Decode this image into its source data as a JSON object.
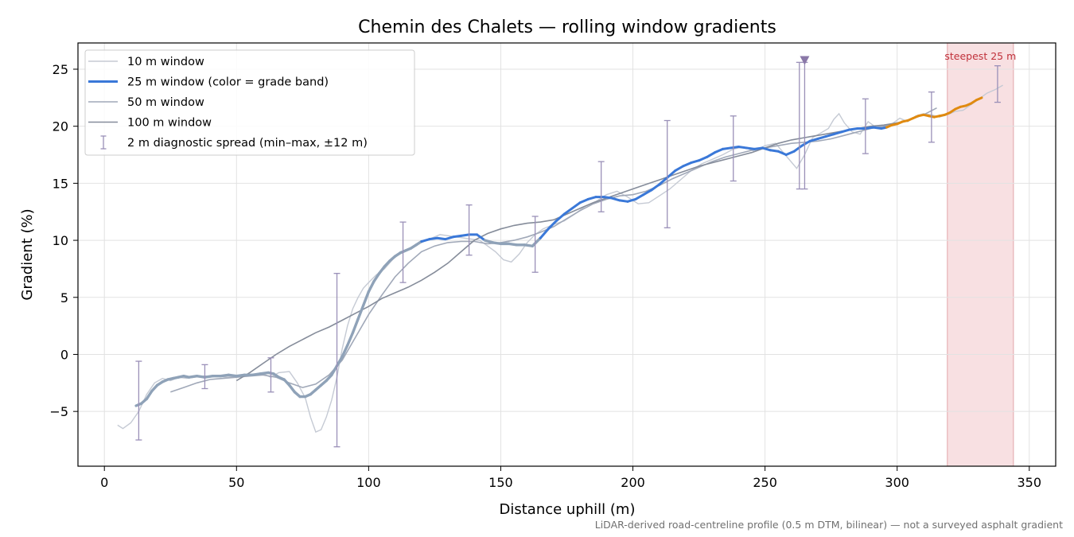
{
  "chart_data": {
    "type": "line",
    "title": "Chemin des Chalets — rolling window gradients",
    "xlabel": "Distance uphill (m)",
    "ylabel": "Gradient (%)",
    "xlim": [
      -10,
      360
    ],
    "ylim": [
      -9.8,
      27.3
    ],
    "xticks": [
      0,
      50,
      100,
      150,
      200,
      250,
      300,
      350
    ],
    "yticks": [
      -5,
      0,
      5,
      10,
      15,
      20,
      25
    ],
    "grid": true,
    "legend_position": "top-left",
    "footnote": "LiDAR-derived road-centreline profile (0.5 m DTM, bilinear) — not a surveyed asphalt gradient",
    "highlight_region": {
      "x0": 319,
      "x1": 344,
      "label": "steepest 25 m",
      "color": "#f5d5d8"
    },
    "peak_marker": {
      "x": 265,
      "y": 25.8,
      "color": "#8a78a8"
    },
    "grade_band_colors": {
      "low": "#8fa2b8",
      "mid": "#3a78d8",
      "high": "#e08a10"
    },
    "series": [
      {
        "name": "10 m window",
        "color": "#c5cad4",
        "x": [
          5,
          7,
          10,
          13,
          16,
          19,
          22,
          25,
          28,
          31,
          34,
          37,
          40,
          43,
          46,
          50,
          55,
          60,
          63,
          66,
          70,
          73,
          76,
          78,
          80,
          82,
          84,
          86,
          88,
          90,
          92,
          94,
          96,
          98,
          100,
          103,
          106,
          109,
          112,
          115,
          118,
          121,
          124,
          127,
          130,
          133,
          136,
          139,
          142,
          145,
          148,
          151,
          154,
          157,
          160,
          163,
          166,
          170,
          174,
          178,
          182,
          186,
          190,
          194,
          198,
          202,
          206,
          210,
          214,
          218,
          222,
          226,
          230,
          234,
          238,
          242,
          246,
          250,
          254,
          258,
          262,
          265,
          268,
          271,
          274,
          276,
          278,
          280,
          283,
          286,
          289,
          292,
          295,
          298,
          301,
          304,
          307,
          310,
          313,
          316,
          319,
          322,
          325,
          328,
          331,
          334,
          337,
          340
        ],
        "y": [
          -6.2,
          -6.5,
          -6.0,
          -5.0,
          -3.5,
          -2.5,
          -2.1,
          -2.3,
          -2.0,
          -2.1,
          -2.0,
          -1.9,
          -1.9,
          -1.9,
          -2.0,
          -1.9,
          -1.8,
          -1.7,
          -2.0,
          -1.6,
          -1.5,
          -2.5,
          -3.8,
          -5.5,
          -6.8,
          -6.6,
          -5.5,
          -4.0,
          -2.0,
          0.5,
          2.5,
          4.0,
          5.0,
          5.8,
          6.3,
          7.0,
          7.5,
          8.3,
          9.0,
          9.2,
          9.6,
          9.9,
          10.2,
          10.5,
          10.4,
          10.3,
          10.2,
          10.1,
          10.0,
          9.5,
          9.0,
          8.3,
          8.1,
          8.8,
          9.8,
          10.5,
          11.0,
          11.4,
          11.7,
          12.3,
          13.0,
          13.4,
          14.0,
          14.3,
          13.8,
          13.2,
          13.3,
          13.9,
          14.5,
          15.3,
          16.1,
          16.7,
          17.1,
          17.5,
          18.0,
          18.2,
          17.8,
          18.3,
          18.5,
          17.4,
          16.3,
          17.5,
          19.0,
          19.4,
          19.8,
          20.6,
          21.1,
          20.3,
          19.5,
          19.3,
          20.4,
          19.9,
          20.1,
          20.2,
          20.7,
          20.4,
          20.9,
          21.1,
          21.0,
          20.8,
          21.0,
          21.3,
          21.4,
          21.9,
          22.4,
          22.9,
          23.2,
          23.6
        ]
      },
      {
        "name": "25 m window (color = grade band)",
        "color": "#3a78d8",
        "x": [
          12,
          14,
          16,
          18,
          20,
          22,
          24,
          26,
          28,
          30,
          32,
          35,
          38,
          41,
          44,
          47,
          50,
          53,
          56,
          59,
          62,
          64,
          66,
          68,
          70,
          72,
          74,
          76,
          78,
          80,
          82,
          84,
          86,
          88,
          90,
          92,
          94,
          96,
          98,
          100,
          102,
          104,
          106,
          108,
          110,
          112,
          114,
          116,
          118,
          120,
          123,
          126,
          129,
          132,
          135,
          138,
          141,
          144,
          147,
          150,
          153,
          156,
          159,
          162,
          165,
          168,
          171,
          174,
          177,
          180,
          183,
          186,
          189,
          192,
          195,
          198,
          201,
          204,
          207,
          210,
          213,
          216,
          219,
          222,
          225,
          228,
          231,
          234,
          237,
          240,
          243,
          246,
          249,
          252,
          255,
          258,
          261,
          264,
          267,
          270,
          273,
          276,
          279,
          282,
          285,
          288,
          291,
          294,
          296,
          298,
          300,
          302,
          304,
          306,
          308,
          310,
          312,
          314,
          316,
          318,
          320,
          322,
          324,
          326,
          328,
          330,
          332
        ],
        "y": [
          -4.5,
          -4.3,
          -3.9,
          -3.2,
          -2.7,
          -2.4,
          -2.2,
          -2.1,
          -2.0,
          -1.9,
          -2.0,
          -1.9,
          -2.0,
          -1.9,
          -1.9,
          -1.8,
          -1.9,
          -1.8,
          -1.8,
          -1.7,
          -1.6,
          -1.7,
          -2.0,
          -2.2,
          -2.7,
          -3.3,
          -3.7,
          -3.7,
          -3.5,
          -3.1,
          -2.7,
          -2.3,
          -1.8,
          -1.0,
          -0.2,
          0.8,
          1.9,
          3.1,
          4.3,
          5.5,
          6.4,
          7.1,
          7.7,
          8.2,
          8.6,
          8.9,
          9.1,
          9.3,
          9.6,
          9.9,
          10.1,
          10.2,
          10.1,
          10.3,
          10.4,
          10.5,
          10.5,
          10.0,
          9.8,
          9.7,
          9.7,
          9.6,
          9.6,
          9.5,
          10.2,
          11.0,
          11.7,
          12.3,
          12.8,
          13.3,
          13.6,
          13.8,
          13.8,
          13.7,
          13.5,
          13.4,
          13.6,
          14.0,
          14.4,
          14.9,
          15.5,
          16.1,
          16.5,
          16.8,
          17.0,
          17.3,
          17.7,
          18.0,
          18.1,
          18.2,
          18.1,
          18.0,
          18.1,
          17.9,
          17.8,
          17.5,
          17.8,
          18.3,
          18.7,
          18.9,
          19.1,
          19.3,
          19.5,
          19.7,
          19.8,
          19.8,
          19.9,
          19.8,
          19.9,
          20.1,
          20.2,
          20.4,
          20.5,
          20.7,
          20.9,
          21.0,
          20.9,
          20.8,
          20.9,
          21.0,
          21.2,
          21.5,
          21.7,
          21.8,
          22.0,
          22.3,
          22.5
        ]
      },
      {
        "name": "50 m window",
        "color": "#a0a8b8",
        "x": [
          25,
          30,
          35,
          40,
          45,
          50,
          55,
          60,
          65,
          70,
          75,
          80,
          85,
          90,
          95,
          100,
          105,
          110,
          115,
          120,
          125,
          130,
          135,
          140,
          145,
          150,
          155,
          160,
          165,
          170,
          175,
          180,
          185,
          190,
          195,
          200,
          205,
          210,
          215,
          220,
          225,
          230,
          235,
          240,
          245,
          250,
          255,
          260,
          265,
          270,
          275,
          280,
          285,
          290,
          295,
          300,
          305,
          310,
          315
        ],
        "y": [
          -3.3,
          -2.9,
          -2.5,
          -2.2,
          -2.1,
          -2.0,
          -1.9,
          -1.8,
          -2.0,
          -2.5,
          -2.9,
          -2.6,
          -1.8,
          -0.5,
          1.5,
          3.5,
          5.2,
          6.8,
          8.0,
          9.0,
          9.5,
          9.8,
          9.9,
          9.9,
          9.7,
          9.8,
          10.0,
          10.3,
          10.7,
          11.2,
          11.9,
          12.6,
          13.2,
          13.6,
          13.9,
          14.0,
          14.3,
          14.8,
          15.4,
          15.9,
          16.4,
          16.9,
          17.3,
          17.6,
          17.9,
          18.1,
          18.3,
          18.5,
          18.6,
          18.7,
          18.9,
          19.2,
          19.5,
          19.8,
          20.0,
          20.3,
          20.6,
          21.0,
          21.6
        ]
      },
      {
        "name": "100 m window",
        "color": "#858c9a",
        "x": [
          50,
          55,
          60,
          65,
          70,
          75,
          80,
          85,
          90,
          95,
          100,
          105,
          110,
          115,
          120,
          125,
          130,
          135,
          140,
          145,
          150,
          155,
          160,
          165,
          170,
          175,
          180,
          185,
          190,
          195,
          200,
          205,
          210,
          215,
          220,
          225,
          230,
          235,
          240,
          245,
          250,
          255,
          260,
          265,
          270,
          275,
          280,
          285,
          290,
          295,
          300
        ],
        "y": [
          -2.3,
          -1.6,
          -0.8,
          0.0,
          0.7,
          1.3,
          1.9,
          2.4,
          3.0,
          3.6,
          4.2,
          4.9,
          5.4,
          5.9,
          6.5,
          7.2,
          8.0,
          9.0,
          10.0,
          10.6,
          11.0,
          11.3,
          11.5,
          11.6,
          11.8,
          12.3,
          12.8,
          13.3,
          13.7,
          14.1,
          14.5,
          14.9,
          15.3,
          15.7,
          16.1,
          16.5,
          16.8,
          17.1,
          17.4,
          17.7,
          18.1,
          18.5,
          18.8,
          19.0,
          19.2,
          19.4,
          19.6,
          19.8,
          20.0,
          20.1,
          20.3
        ]
      },
      {
        "name": "2 m diagnostic spread (min–max, ±12 m)",
        "color": "#9a90b8",
        "x": [
          13,
          38,
          63,
          88,
          113,
          138,
          163,
          188,
          213,
          238,
          263,
          265,
          288,
          313,
          338
        ],
        "y_min": [
          -7.5,
          -3.0,
          -3.3,
          -8.1,
          6.3,
          8.7,
          7.2,
          12.5,
          11.1,
          15.2,
          14.5,
          14.5,
          17.6,
          18.6,
          22.1
        ],
        "y_max": [
          -0.6,
          -0.9,
          -0.3,
          7.1,
          11.6,
          13.1,
          12.1,
          16.9,
          20.5,
          20.9,
          25.6,
          25.6,
          22.4,
          23.0,
          25.3
        ]
      }
    ]
  }
}
